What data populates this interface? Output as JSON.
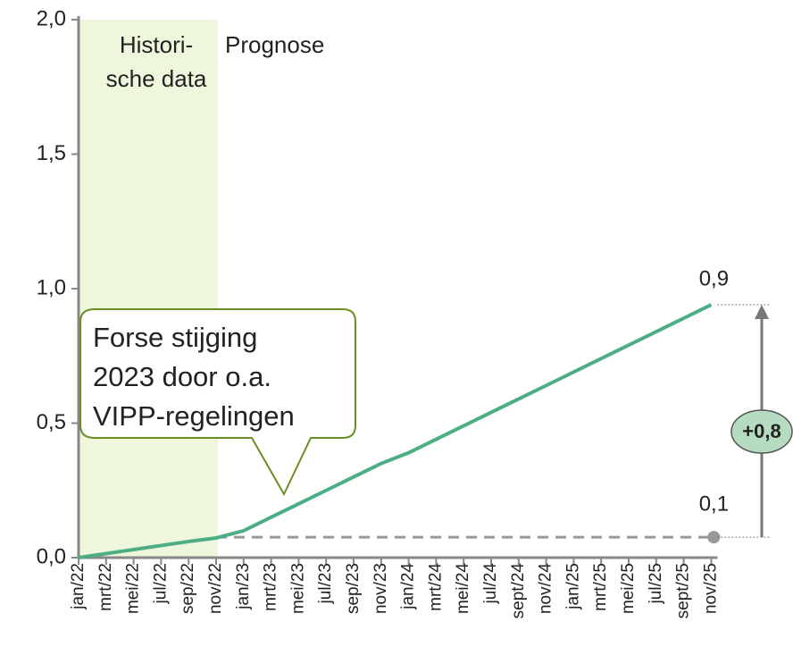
{
  "chart_data": {
    "type": "line",
    "categories": [
      "jan/22",
      "mrt/22",
      "mei/22",
      "jul/22",
      "sep/22",
      "nov/22",
      "jan/23",
      "mrt/23",
      "mei/23",
      "jul/23",
      "sep/23",
      "nov/23",
      "jan/24",
      "mrt/24",
      "mei/24",
      "jul/24",
      "sept/24",
      "nov/24",
      "jan/25",
      "mrt/25",
      "mei/25",
      "jul/25",
      "sept/25",
      "nov/25"
    ],
    "values": [
      0,
      0.015,
      0.03,
      0.045,
      0.06,
      0.073,
      0.1,
      0.15,
      0.2,
      0.25,
      0.3,
      0.35,
      0.39,
      0.44,
      0.49,
      0.54,
      0.59,
      0.64,
      0.69,
      0.74,
      0.79,
      0.84,
      0.89,
      0.94
    ],
    "color": "#4dae84",
    "ylim": [
      0,
      2
    ],
    "yticks": [
      {
        "value": 0,
        "label": "0,0"
      },
      {
        "value": 0.5,
        "label": "0,5"
      },
      {
        "value": 1,
        "label": "1,0"
      },
      {
        "value": 1.5,
        "label": "1,5"
      },
      {
        "value": 2,
        "label": "2,0"
      }
    ],
    "regions": [
      {
        "label_lines": [
          "Histori-",
          "sche data"
        ],
        "color": "#eef6dc",
        "from": "jan/22",
        "to": "nov/22"
      },
      {
        "label": "Prognose"
      }
    ],
    "reference_line": {
      "value": 0.076,
      "label": "0,1"
    },
    "end_label": {
      "value": 0.94,
      "label": "0,9"
    },
    "difference_label": "+0,8",
    "callout": [
      "Forse stijging",
      "2023 door o.a.",
      "VIPP-regelingen"
    ]
  }
}
